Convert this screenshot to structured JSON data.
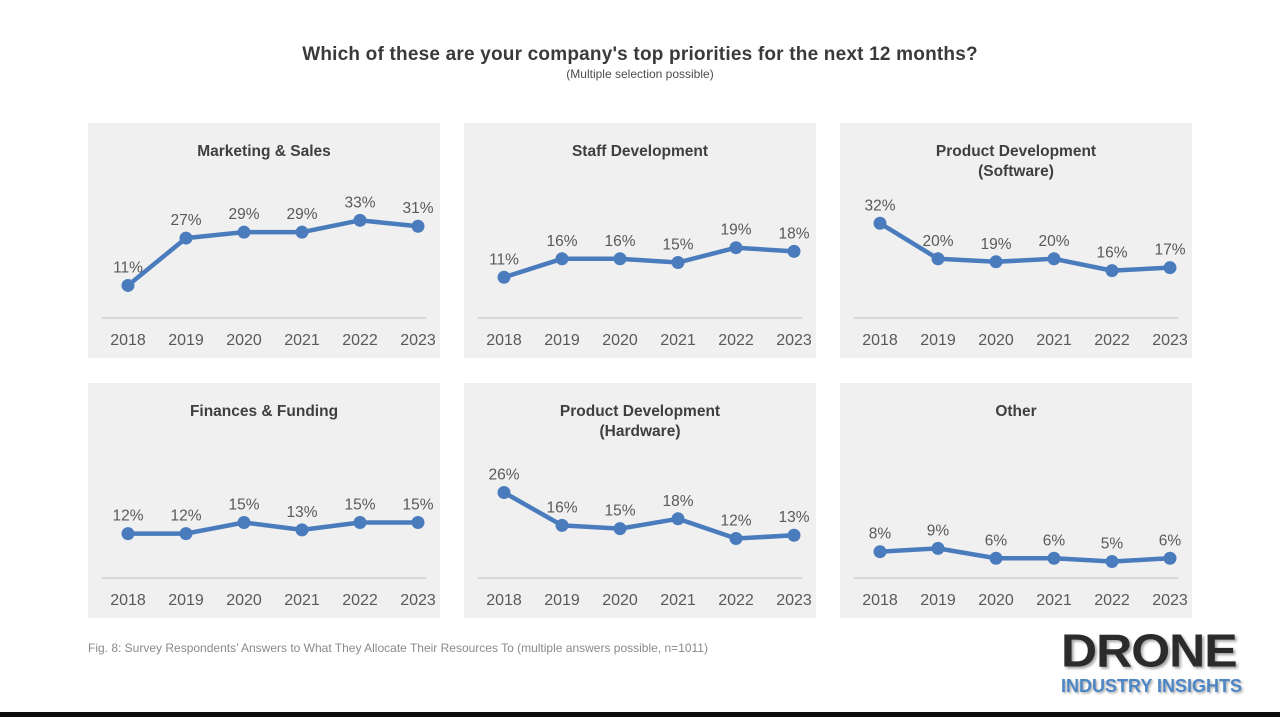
{
  "page": {
    "title": "Which of these are your company's top priorities for the next 12 months?",
    "subtitle": "(Multiple selection possible)",
    "caption": "Fig. 8: Survey Respondents’ Answers to What They Allocate Their Resources To (multiple answers possible, n=1011)"
  },
  "logo": {
    "name": "DRONE",
    "tagline": "INDUSTRY INSIGHTS",
    "name_color": "#2b2b2b",
    "tagline_color": "#4c86c5"
  },
  "colors": {
    "line": "#4a7cbd",
    "panel_background": "#f0f0f0",
    "axis_line": "#c8c8c8",
    "label_text": "#595959",
    "chart_title_text": "#3f3f3f"
  },
  "chart_data": {
    "type": "line",
    "unit": "%",
    "categories": [
      "2018",
      "2019",
      "2020",
      "2021",
      "2022",
      "2023"
    ],
    "legend": "none",
    "grid": false,
    "charts": [
      {
        "title": "Marketing & Sales",
        "values": [
          11,
          27,
          29,
          29,
          33,
          31
        ],
        "labels": [
          "11%",
          "27%",
          "29%",
          "29%",
          "33%",
          "31%"
        ],
        "ymax": 50
      },
      {
        "title": "Staff Development",
        "values": [
          11,
          16,
          16,
          15,
          19,
          18
        ],
        "labels": [
          "11%",
          "16%",
          "16%",
          "15%",
          "19%",
          "18%"
        ],
        "ymax": 40
      },
      {
        "title": "Product Development\n(Software)",
        "values": [
          32,
          20,
          19,
          20,
          16,
          17
        ],
        "labels": [
          "32%",
          "20%",
          "19%",
          "20%",
          "16%",
          "17%"
        ],
        "ymax": 50
      },
      {
        "title": "Finances & Funding",
        "values": [
          12,
          12,
          15,
          13,
          15,
          15
        ],
        "labels": [
          "12%",
          "12%",
          "15%",
          "13%",
          "15%",
          "15%"
        ],
        "ymax": 40
      },
      {
        "title": "Product Development\n(Hardware)",
        "values": [
          26,
          16,
          15,
          18,
          12,
          13
        ],
        "labels": [
          "26%",
          "16%",
          "15%",
          "18%",
          "12%",
          "13%"
        ],
        "ymax": 45
      },
      {
        "title": "Other",
        "values": [
          8,
          9,
          6,
          6,
          5,
          6
        ],
        "labels": [
          "8%",
          "9%",
          "6%",
          "6%",
          "5%",
          "6%"
        ],
        "ymax": 45
      }
    ]
  }
}
